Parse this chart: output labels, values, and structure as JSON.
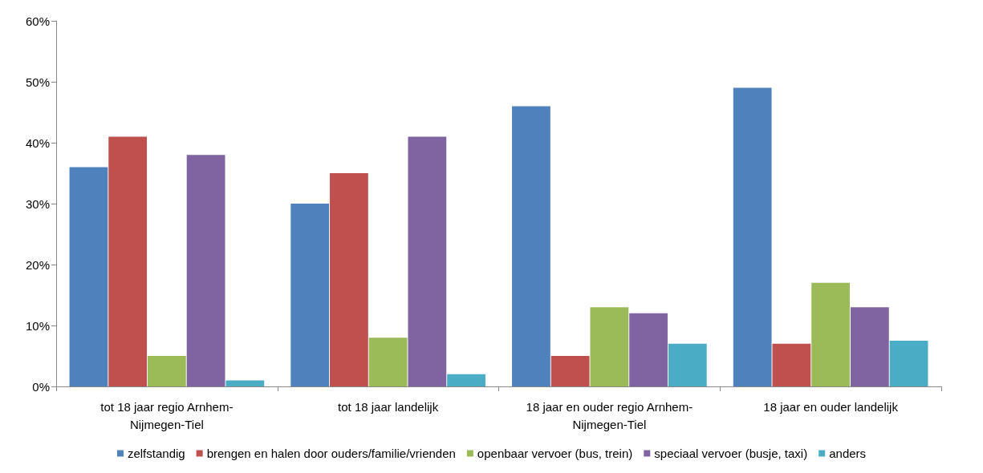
{
  "chart_data": {
    "type": "bar",
    "categories": [
      "tot 18 jaar regio Arnhem-Nijmegen-Tiel",
      "tot 18 jaar landelijk",
      "18 jaar en ouder regio Arnhem-Nijmegen-Tiel",
      "18 jaar en ouder landelijk"
    ],
    "series": [
      {
        "name": "zelfstandig",
        "color": "#4f81bd",
        "values": [
          36,
          30,
          46,
          49
        ]
      },
      {
        "name": "brengen en halen door ouders/familie/vrienden",
        "color": "#c0504d",
        "values": [
          41,
          35,
          5,
          7
        ]
      },
      {
        "name": "openbaar vervoer (bus, trein)",
        "color": "#9bbb59",
        "values": [
          5,
          8,
          13,
          17
        ]
      },
      {
        "name": "speciaal vervoer (busje, taxi)",
        "color": "#8064a2",
        "values": [
          38,
          41,
          12,
          13
        ]
      },
      {
        "name": "anders",
        "color": "#4bacc6",
        "values": [
          1,
          2,
          7,
          7.5
        ]
      }
    ],
    "ylim": [
      0,
      60
    ],
    "yticks": [
      {
        "value": 0,
        "label": "0%"
      },
      {
        "value": 10,
        "label": "10%"
      },
      {
        "value": 20,
        "label": "20%"
      },
      {
        "value": 30,
        "label": "30%"
      },
      {
        "value": 40,
        "label": "40%"
      },
      {
        "value": 50,
        "label": "50%"
      },
      {
        "value": 60,
        "label": "60%"
      }
    ],
    "grid": false,
    "legend": "bottom"
  }
}
